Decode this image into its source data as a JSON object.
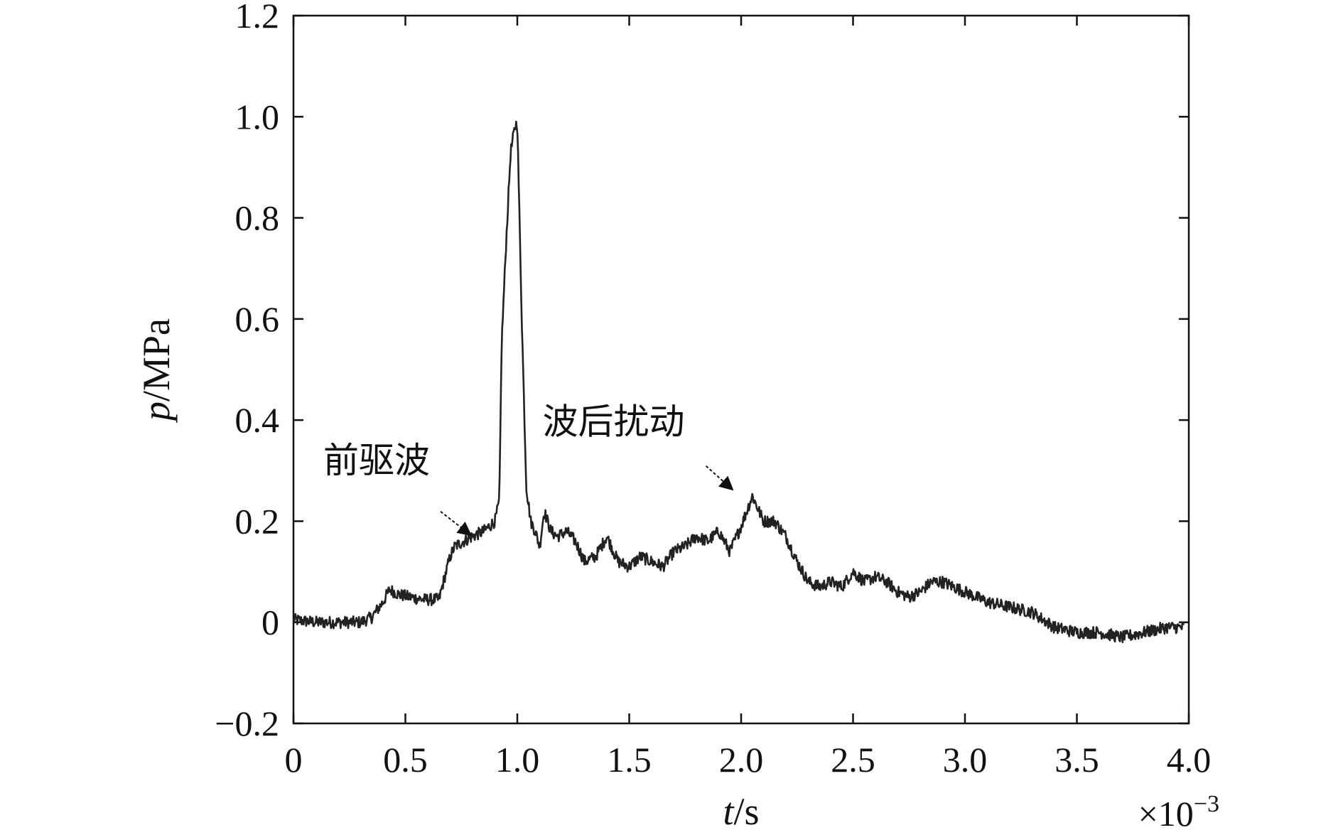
{
  "chart_data": {
    "type": "line",
    "title": "",
    "xlabel_var": "t",
    "xlabel_unit": "/s",
    "ylabel_var": "p",
    "ylabel_unit": "/MPa",
    "x_multiplier": "×10",
    "x_multiplier_exp": "−3",
    "xlim": [
      0,
      4.0
    ],
    "ylim": [
      -0.2,
      1.2
    ],
    "grid": false,
    "x_ticks": [
      {
        "value": 0,
        "label": "0"
      },
      {
        "value": 0.5,
        "label": "0.5"
      },
      {
        "value": 1.0,
        "label": "1.0"
      },
      {
        "value": 1.5,
        "label": "1.5"
      },
      {
        "value": 2.0,
        "label": "2.0"
      },
      {
        "value": 2.5,
        "label": "2.5"
      },
      {
        "value": 3.0,
        "label": "3.0"
      },
      {
        "value": 3.5,
        "label": "3.5"
      },
      {
        "value": 4.0,
        "label": "4.0"
      }
    ],
    "y_ticks": [
      {
        "value": -0.2,
        "label": "−0.2"
      },
      {
        "value": 0,
        "label": "0"
      },
      {
        "value": 0.2,
        "label": "0.2"
      },
      {
        "value": 0.4,
        "label": "0.4"
      },
      {
        "value": 0.6,
        "label": "0.6"
      },
      {
        "value": 0.8,
        "label": "0.8"
      },
      {
        "value": 1.0,
        "label": "1.0"
      },
      {
        "value": 1.2,
        "label": "1.2"
      }
    ],
    "series": [
      {
        "color": "#222222",
        "noise": 0.012,
        "x": [
          0,
          0.1,
          0.2,
          0.3,
          0.35,
          0.4,
          0.43,
          0.47,
          0.52,
          0.58,
          0.65,
          0.67,
          0.7,
          0.72,
          0.76,
          0.8,
          0.85,
          0.9,
          0.92,
          0.93,
          0.95,
          0.97,
          0.99,
          1.0,
          1.02,
          1.04,
          1.06,
          1.08,
          1.1,
          1.12,
          1.15,
          1.18,
          1.22,
          1.26,
          1.3,
          1.35,
          1.4,
          1.45,
          1.5,
          1.55,
          1.6,
          1.65,
          1.7,
          1.75,
          1.8,
          1.85,
          1.9,
          1.95,
          2.0,
          2.05,
          2.1,
          2.15,
          2.2,
          2.25,
          2.3,
          2.35,
          2.4,
          2.45,
          2.5,
          2.55,
          2.6,
          2.65,
          2.7,
          2.75,
          2.8,
          2.85,
          2.9,
          3.0,
          3.1,
          3.2,
          3.3,
          3.4,
          3.5,
          3.6,
          3.7,
          3.8,
          3.9,
          3.98
        ],
        "y": [
          0.005,
          0.0,
          0.0,
          0.0,
          0.01,
          0.04,
          0.065,
          0.055,
          0.05,
          0.045,
          0.045,
          0.08,
          0.13,
          0.15,
          0.16,
          0.17,
          0.18,
          0.2,
          0.24,
          0.55,
          0.75,
          0.93,
          0.98,
          0.99,
          0.6,
          0.27,
          0.2,
          0.18,
          0.15,
          0.22,
          0.18,
          0.17,
          0.18,
          0.16,
          0.12,
          0.13,
          0.17,
          0.12,
          0.11,
          0.13,
          0.12,
          0.11,
          0.14,
          0.15,
          0.17,
          0.16,
          0.18,
          0.14,
          0.19,
          0.25,
          0.2,
          0.2,
          0.17,
          0.12,
          0.08,
          0.07,
          0.08,
          0.07,
          0.1,
          0.08,
          0.09,
          0.08,
          0.06,
          0.05,
          0.06,
          0.08,
          0.08,
          0.06,
          0.04,
          0.03,
          0.02,
          -0.01,
          -0.02,
          -0.02,
          -0.03,
          -0.02,
          -0.01,
          -0.01
        ]
      }
    ],
    "annotations": [
      {
        "text": "前驱波",
        "x": 0.8,
        "y": 0.17
      },
      {
        "text": "波后扰动",
        "x": 1.97,
        "y": 0.26
      }
    ]
  }
}
